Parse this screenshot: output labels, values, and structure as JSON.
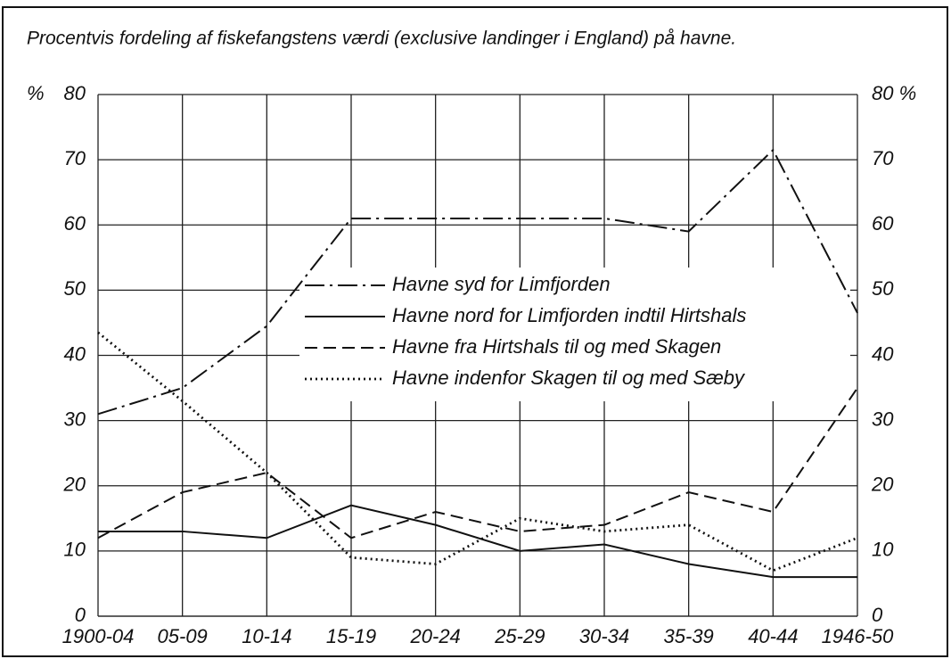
{
  "chart_data": {
    "type": "line",
    "title": "Procentvis fordeling af fiskefangstens værdi (exclusive landinger i England) på havne.",
    "y_label": "%",
    "categories": [
      "1900-04",
      "05-09",
      "10-14",
      "15-19",
      "20-24",
      "25-29",
      "30-34",
      "35-39",
      "40-44",
      "1946-50"
    ],
    "series": [
      {
        "name": "Havne syd for Limfjorden",
        "color": "#111111",
        "style": "dash-dot",
        "values": [
          31,
          35,
          44.5,
          61,
          61,
          61,
          61,
          59,
          71.5,
          46.5
        ]
      },
      {
        "name": "Havne nord for Limfjorden indtil Hirtshals",
        "color": "#111111",
        "style": "solid",
        "values": [
          13,
          13,
          12,
          17,
          14,
          10,
          11,
          8,
          6,
          6
        ]
      },
      {
        "name": "Havne fra Hirtshals til og med  Skagen",
        "color": "#111111",
        "style": "dashed",
        "values": [
          12,
          19,
          22,
          12,
          16,
          13,
          14,
          19,
          16,
          35
        ]
      },
      {
        "name": "Havne indenfor Skagen til og med Sæby",
        "color": "#111111",
        "style": "dotted",
        "values": [
          43.5,
          33,
          22,
          9,
          8,
          15,
          13,
          14,
          7,
          12
        ]
      }
    ],
    "ylim": [
      0,
      80
    ],
    "yticks": [
      0,
      10,
      20,
      30,
      40,
      50,
      60,
      70,
      80
    ],
    "y2lim": [
      0,
      80
    ],
    "y2ticks": [
      0,
      10,
      20,
      30,
      40,
      50,
      60,
      70,
      {
        "value": 80,
        "label": "80 %"
      }
    ],
    "grid": true
  }
}
